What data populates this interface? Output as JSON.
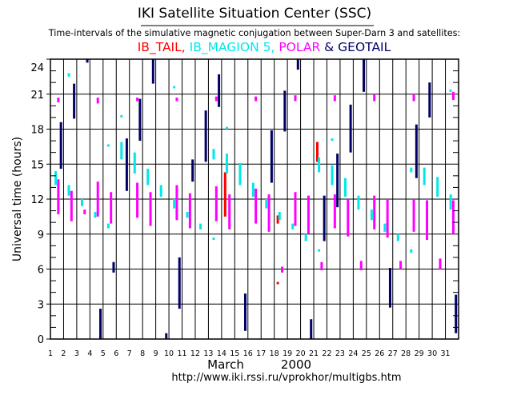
{
  "header": {
    "title": "IKI Satellite Situation Center (SSC)",
    "subtitle": "Time-intervals of the simulative magnetic conjugation between Super-Darn 3 and satellites:",
    "legend": [
      {
        "text": "IB_TAIL,",
        "color": "#ff0000"
      },
      {
        "text": " IB_MAGION 5,",
        "color": "#00e8e8"
      },
      {
        "text": " POLAR",
        "color": "#ff00ff"
      },
      {
        "text": " & GEOTAIL",
        "color": "#000066"
      }
    ]
  },
  "footer": {
    "month": "March",
    "year": "2000",
    "url": "http://www.iki.rssi.ru/vprokhor/multigbs.htm"
  },
  "chart_data": {
    "type": "interval",
    "ylabel": "Universal time (hours)",
    "ylim": [
      0,
      24
    ],
    "yticks": [
      0,
      3,
      6,
      9,
      12,
      15,
      18,
      21,
      24
    ],
    "xlim": [
      1,
      32
    ],
    "xticks": [
      1,
      2,
      3,
      4,
      5,
      6,
      7,
      8,
      9,
      10,
      11,
      12,
      13,
      14,
      15,
      16,
      17,
      18,
      19,
      20,
      21,
      22,
      23,
      24,
      25,
      26,
      27,
      28,
      29,
      30,
      31
    ],
    "grid": true,
    "series": [
      {
        "name": "IB_TAIL",
        "color": "#ff0000",
        "intervals": [
          [
            14,
            10.5,
            14.3
          ],
          [
            18,
            9.9,
            10.6
          ],
          [
            18,
            4.7,
            4.9
          ],
          [
            21,
            15.2,
            16.9
          ]
        ]
      },
      {
        "name": "IB_MAGION 5",
        "color": "#00e8e8",
        "intervals": [
          [
            1,
            13.2,
            14.4
          ],
          [
            2,
            22.5,
            22.8
          ],
          [
            2,
            12.3,
            13.2
          ],
          [
            3,
            11.4,
            12.0
          ],
          [
            4,
            10.4,
            10.9
          ],
          [
            5,
            16.5,
            16.7
          ],
          [
            5,
            9.5,
            9.9
          ],
          [
            6,
            19.0,
            19.2
          ],
          [
            6,
            15.4,
            16.9
          ],
          [
            7,
            14.2,
            16.0
          ],
          [
            8,
            13.2,
            14.6
          ],
          [
            9,
            12.2,
            13.2
          ],
          [
            10,
            21.5,
            21.7
          ],
          [
            10,
            11.2,
            12.0
          ],
          [
            11,
            10.4,
            10.9
          ],
          [
            12,
            9.4,
            9.9
          ],
          [
            13,
            15.4,
            16.3
          ],
          [
            13,
            8.5,
            8.7
          ],
          [
            14,
            18.0,
            18.2
          ],
          [
            14,
            14.2,
            15.9
          ],
          [
            15,
            13.2,
            15.1
          ],
          [
            16,
            12.2,
            13.4
          ],
          [
            17,
            11.2,
            12.0
          ],
          [
            18,
            10.2,
            10.9
          ],
          [
            19,
            9.4,
            9.9
          ],
          [
            20,
            8.4,
            9.0
          ],
          [
            21,
            14.3,
            15.6
          ],
          [
            21,
            7.5,
            7.7
          ],
          [
            22,
            17.0,
            17.2
          ],
          [
            22,
            13.2,
            14.9
          ],
          [
            23,
            12.2,
            13.8
          ],
          [
            24,
            11.1,
            12.3
          ],
          [
            25,
            10.2,
            11.1
          ],
          [
            26,
            9.2,
            9.9
          ],
          [
            27,
            8.4,
            9.0
          ],
          [
            28,
            14.3,
            14.7
          ],
          [
            28,
            7.4,
            7.7
          ],
          [
            29,
            13.2,
            14.7
          ],
          [
            30,
            12.2,
            13.9
          ],
          [
            31,
            21.2,
            21.4
          ],
          [
            31,
            11.1,
            12.4
          ]
        ]
      },
      {
        "name": "POLAR",
        "color": "#ff00ff",
        "intervals": [
          [
            1,
            20.3,
            20.7
          ],
          [
            1,
            10.7,
            13.7
          ],
          [
            2,
            10.1,
            12.7
          ],
          [
            3,
            10.7,
            11.1
          ],
          [
            4,
            20.2,
            20.7
          ],
          [
            4,
            10.5,
            13.5
          ],
          [
            5,
            9.9,
            12.6
          ],
          [
            7,
            20.4,
            20.7
          ],
          [
            7,
            10.4,
            13.4
          ],
          [
            8,
            9.7,
            12.6
          ],
          [
            10,
            20.4,
            20.7
          ],
          [
            10,
            10.2,
            13.2
          ],
          [
            11,
            9.5,
            12.5
          ],
          [
            13,
            20.4,
            20.8
          ],
          [
            13,
            10.1,
            13.1
          ],
          [
            14,
            9.4,
            12.4
          ],
          [
            16,
            20.4,
            20.8
          ],
          [
            16,
            9.9,
            12.9
          ],
          [
            17,
            9.2,
            12.4
          ],
          [
            18,
            5.7,
            6.2
          ],
          [
            19,
            20.4,
            20.9
          ],
          [
            19,
            9.7,
            12.6
          ],
          [
            20,
            9.0,
            12.3
          ],
          [
            21,
            5.9,
            6.6
          ],
          [
            22,
            20.4,
            20.9
          ],
          [
            22,
            9.5,
            12.4
          ],
          [
            23,
            8.8,
            12.0
          ],
          [
            24,
            5.9,
            6.7
          ],
          [
            25,
            20.4,
            21.0
          ],
          [
            25,
            9.4,
            12.3
          ],
          [
            26,
            8.7,
            12.0
          ],
          [
            27,
            6.0,
            6.7
          ],
          [
            28,
            20.4,
            21.0
          ],
          [
            28,
            9.2,
            12.0
          ],
          [
            29,
            8.5,
            11.9
          ],
          [
            30,
            6.0,
            6.9
          ],
          [
            31,
            20.5,
            21.2
          ],
          [
            31,
            9.0,
            11.9
          ]
        ]
      },
      {
        "name": "GEOTAIL",
        "color": "#000066",
        "intervals": [
          [
            1,
            14.6,
            18.6
          ],
          [
            2,
            18.9,
            21.9
          ],
          [
            3,
            23.7,
            24
          ],
          [
            4,
            0,
            2.6
          ],
          [
            5,
            5.7,
            6.6
          ],
          [
            6,
            12.7,
            17.2
          ],
          [
            7,
            17.0,
            20.6
          ],
          [
            8,
            21.9,
            24
          ],
          [
            9,
            0,
            0.5
          ],
          [
            10,
            2.6,
            7.0
          ],
          [
            11,
            13.5,
            15.4
          ],
          [
            12,
            15.2,
            19.6
          ],
          [
            13,
            19.9,
            22.7
          ],
          [
            15,
            0.7,
            3.9
          ],
          [
            17,
            13.4,
            17.9
          ],
          [
            18,
            17.8,
            21.3
          ],
          [
            19,
            23.1,
            24
          ],
          [
            20,
            0,
            1.7
          ],
          [
            21,
            8.4,
            12.3
          ],
          [
            22,
            11.3,
            15.9
          ],
          [
            23,
            16.0,
            20.1
          ],
          [
            24,
            21.2,
            24
          ],
          [
            26,
            2.7,
            6.1
          ],
          [
            28,
            13.8,
            18.4
          ],
          [
            29,
            19.0,
            22.0
          ],
          [
            31,
            0.5,
            3.8
          ]
        ]
      }
    ]
  }
}
